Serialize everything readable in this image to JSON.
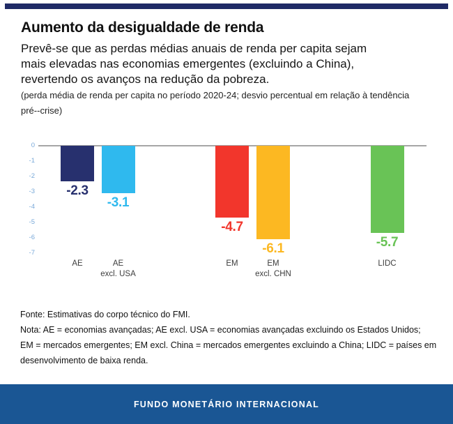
{
  "colors": {
    "top_bar": "#1f2a66",
    "banner_background": "#1a5694",
    "axis_line": "#a6a6a6",
    "axis_tick_labels": "#79a9d9"
  },
  "header": {
    "title": "Aumento da desigualdade de renda",
    "subtitle_lines": [
      "Prevê-se que as perdas médias anuais de renda per capita sejam",
      "mais elevadas nas economias emergentes (excluindo a China),",
      "revertendo os avanços na redução da pobreza."
    ],
    "note_lines": [
      "(perda média de renda per capita no período 2020-24; desvio percentual em relação à tendência",
      "pré--crise)"
    ]
  },
  "chart_data": {
    "type": "bar",
    "title": "Aumento da desigualdade de renda",
    "subtitle": "perda média de renda per capita no período 2020-24; desvio percentual em relação à tendência pré-crise",
    "categories": [
      "AE",
      "AE\nexcl. USA",
      "EM",
      "EM\nexcl. CHN",
      "LIDC"
    ],
    "values": [
      -2.3,
      -3.1,
      -4.7,
      -6.1,
      -5.7
    ],
    "value_labels": [
      "-2.3",
      "-3.1",
      "-4.7",
      "-6.1",
      "-5.7"
    ],
    "bar_colors": [
      "#27306e",
      "#2fb9ee",
      "#f2362c",
      "#fcb822",
      "#69c356"
    ],
    "xlabel": "",
    "ylabel": "",
    "ylim": [
      -7,
      0
    ],
    "yticks": [
      "0",
      "-1",
      "-2",
      "-3",
      "-4",
      "-5",
      "-6",
      "-7"
    ],
    "grid": false,
    "legend": null
  },
  "footer": {
    "source": "Fonte: Estimativas do corpo técnico do FMI.",
    "note_lines": [
      "Nota: AE = economias avançadas; AE excl. USA = economias avançadas excluindo os Estados Unidos;",
      "EM = mercados emergentes; EM excl. China = mercados emergentes excluindo a China; LIDC = países em",
      "desenvolvimento de baixa renda."
    ]
  },
  "banner": {
    "label": "FUNDO MONETÁRIO INTERNACIONAL"
  }
}
